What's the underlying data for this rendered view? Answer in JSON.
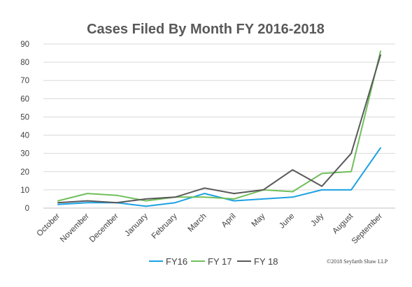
{
  "chart_data": {
    "type": "line",
    "title": "Cases Filed By Month FY 2016-2018",
    "categories": [
      "October",
      "November",
      "December",
      "January",
      "February",
      "March",
      "April",
      "May",
      "June",
      "July",
      "August",
      "September"
    ],
    "ylim": [
      0,
      90
    ],
    "yticks": [
      0,
      10,
      20,
      30,
      40,
      50,
      60,
      70,
      80,
      90
    ],
    "grid": true,
    "legend": "bottom",
    "series": [
      {
        "name": "FY16",
        "color": "#1ba1e2",
        "values": [
          2,
          3,
          3,
          1,
          3,
          8,
          4,
          5,
          6,
          10,
          10,
          33
        ]
      },
      {
        "name": "FY 17",
        "color": "#70bf5b",
        "values": [
          4,
          8,
          7,
          4,
          6,
          6,
          5,
          10,
          9,
          19,
          20,
          86
        ]
      },
      {
        "name": "FY 18",
        "color": "#595959",
        "values": [
          3,
          4,
          3,
          5,
          6,
          11,
          8,
          10,
          21,
          12,
          30,
          84
        ]
      }
    ]
  },
  "copyright": "©2018 Seyfarth Shaw LLP"
}
